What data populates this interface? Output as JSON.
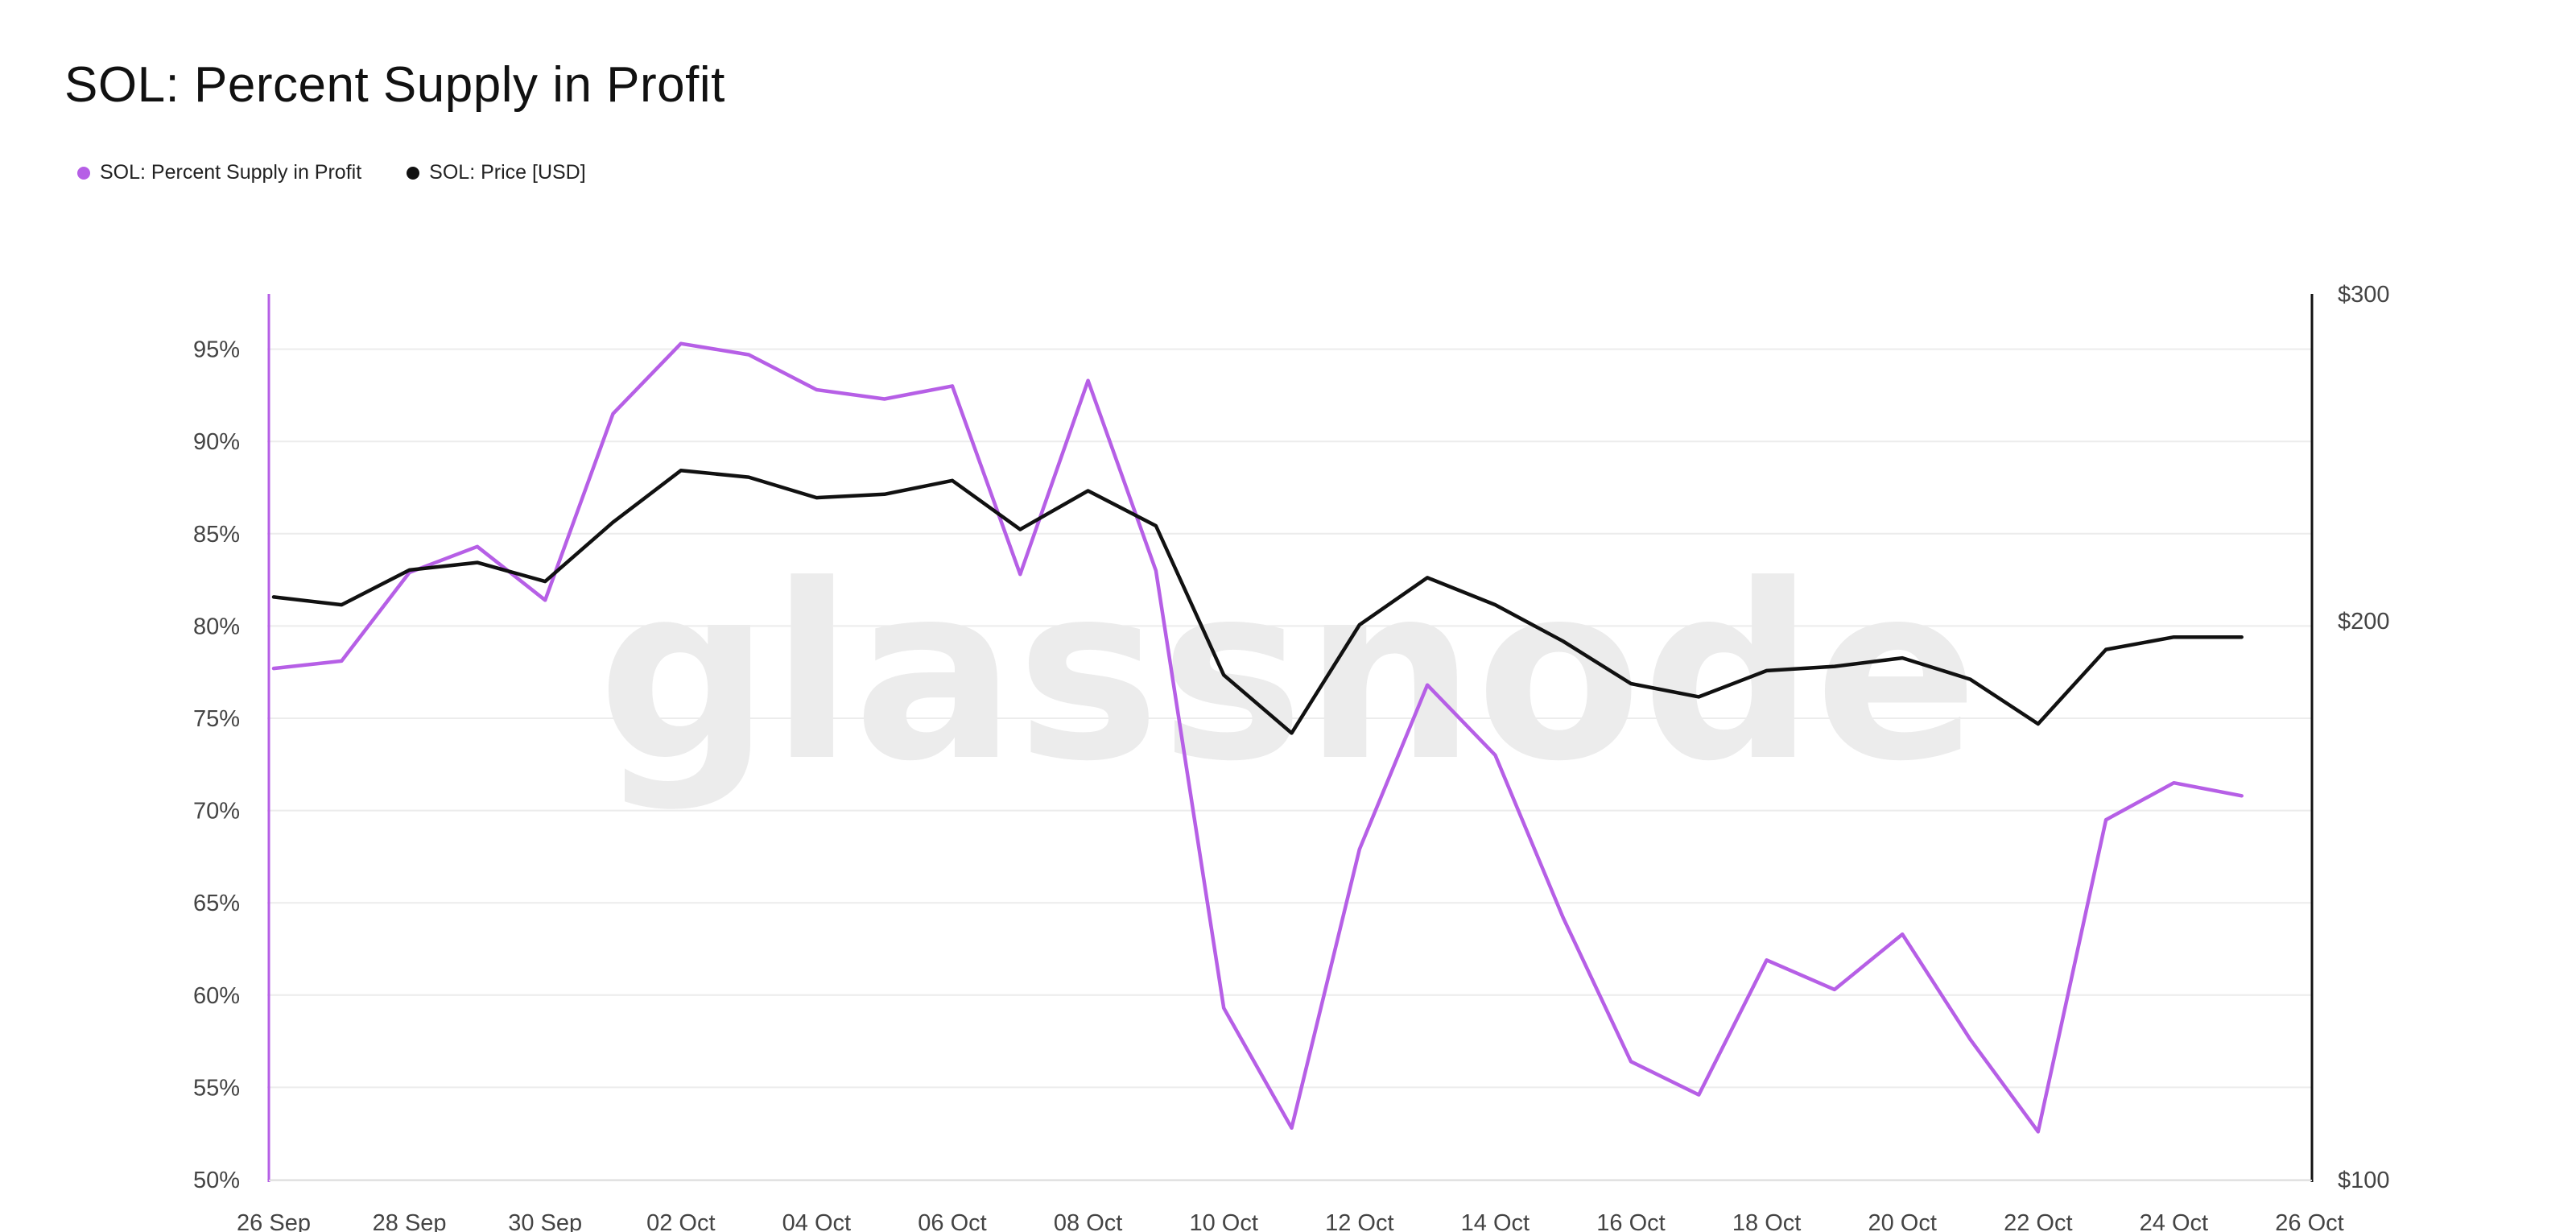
{
  "title": "SOL: Percent Supply in Profit",
  "watermark": "glassnode",
  "colors": {
    "supply": "#b65fe6",
    "price": "#111111",
    "grid": "#ececec",
    "watermark": "#ececec"
  },
  "legend": [
    {
      "label": "SOL: Percent Supply in Profit",
      "color": "#b65fe6"
    },
    {
      "label": "SOL: Price [USD]",
      "color": "#111111"
    }
  ],
  "chart_data": {
    "type": "line",
    "title": "SOL: Percent Supply in Profit",
    "x": [
      "26 Sep",
      "27 Sep",
      "28 Sep",
      "29 Sep",
      "30 Sep",
      "01 Oct",
      "02 Oct",
      "03 Oct",
      "04 Oct",
      "05 Oct",
      "06 Oct",
      "07 Oct",
      "08 Oct",
      "09 Oct",
      "10 Oct",
      "11 Oct",
      "12 Oct",
      "13 Oct",
      "14 Oct",
      "15 Oct",
      "16 Oct",
      "17 Oct",
      "18 Oct",
      "19 Oct",
      "20 Oct",
      "21 Oct",
      "22 Oct",
      "23 Oct",
      "24 Oct",
      "25 Oct"
    ],
    "x_ticks": [
      "26 Sep",
      "28 Sep",
      "30 Sep",
      "02 Oct",
      "04 Oct",
      "06 Oct",
      "08 Oct",
      "10 Oct",
      "12 Oct",
      "14 Oct",
      "16 Oct",
      "18 Oct",
      "20 Oct",
      "22 Oct",
      "24 Oct",
      "26 Oct"
    ],
    "y_left": {
      "ticks": [
        "50%",
        "55%",
        "60%",
        "65%",
        "70%",
        "75%",
        "80%",
        "85%",
        "90%",
        "95%"
      ],
      "range": [
        50,
        98
      ],
      "unit": "%"
    },
    "y_right": {
      "ticks": [
        "$100",
        "$200",
        "$300"
      ],
      "range": [
        100,
        300
      ],
      "scale": "log"
    },
    "grid": true,
    "legend_position": "top-left",
    "series": [
      {
        "name": "SOL: Percent Supply in Profit",
        "axis": "left",
        "values": [
          77.7,
          78.1,
          82.9,
          84.3,
          81.4,
          91.5,
          95.3,
          94.7,
          92.8,
          92.3,
          93.0,
          82.8,
          93.3,
          83.0,
          59.3,
          52.8,
          67.9,
          76.8,
          73.0,
          64.2,
          56.4,
          54.6,
          61.9,
          60.3,
          63.3,
          57.6,
          52.6,
          69.5,
          71.5,
          70.8
        ]
      },
      {
        "name": "SOL: Price [USD]",
        "axis": "right",
        "values": [
          206,
          204,
          213,
          215,
          210,
          226,
          241,
          239,
          233,
          234,
          238,
          224,
          235,
          225,
          187,
          174,
          199,
          211,
          204,
          195,
          185,
          182,
          188,
          189,
          191,
          186,
          176,
          193,
          196,
          196
        ]
      }
    ]
  }
}
